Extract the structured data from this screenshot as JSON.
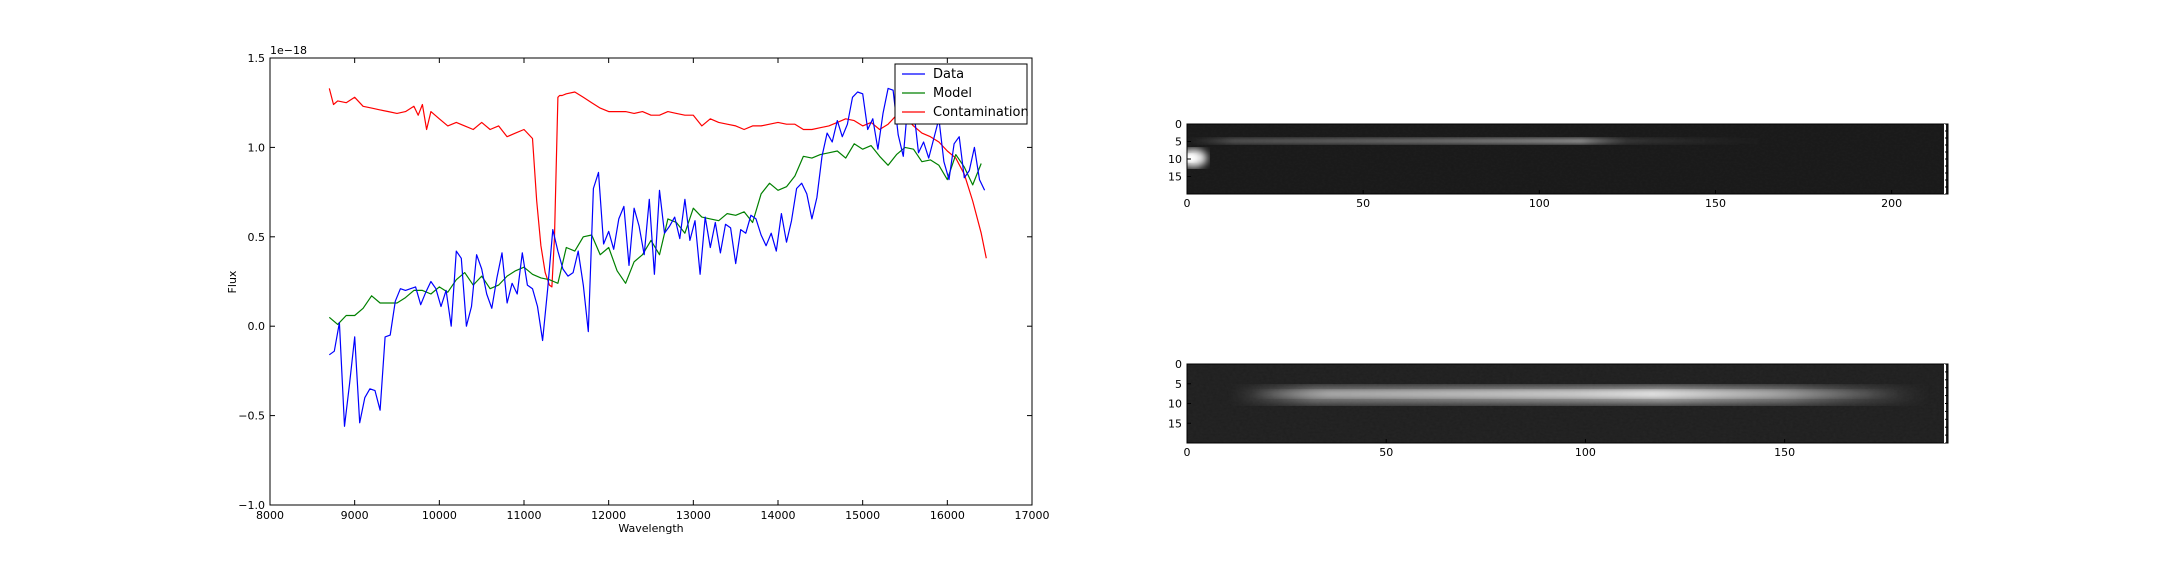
{
  "colors": {
    "data": "#0000ff",
    "model": "#008000",
    "contamination": "#ff0000"
  },
  "chart_data": [
    {
      "type": "line",
      "title": "",
      "xlabel": "Wavelength",
      "ylabel": "Flux",
      "offset_text": "1e−18",
      "xlim": [
        8000,
        17000
      ],
      "ylim": [
        -1.0,
        1.5
      ],
      "x_ticks": [
        8000,
        9000,
        10000,
        11000,
        12000,
        13000,
        14000,
        15000,
        16000,
        17000
      ],
      "y_ticks": [
        -1.0,
        -0.5,
        0.0,
        0.5,
        1.0,
        1.5
      ],
      "x_tick_labels": [
        "8000",
        "9000",
        "10000",
        "11000",
        "12000",
        "13000",
        "14000",
        "15000",
        "16000",
        "17000"
      ],
      "y_tick_labels": [
        "−1.0",
        "−0.5",
        "0.0",
        "0.5",
        "1.0",
        "1.5"
      ],
      "legend_position": "top-right",
      "series": [
        {
          "name": "Data",
          "color": "#0000ff",
          "x": [
            8700,
            8760,
            8820,
            8880,
            8940,
            9000,
            9060,
            9120,
            9180,
            9240,
            9300,
            9360,
            9420,
            9480,
            9540,
            9600,
            9660,
            9720,
            9780,
            9840,
            9900,
            9960,
            10020,
            10080,
            10140,
            10200,
            10260,
            10320,
            10380,
            10440,
            10500,
            10560,
            10620,
            10680,
            10740,
            10800,
            10860,
            10920,
            10980,
            11040,
            11100,
            11160,
            11220,
            11280,
            11340,
            11400,
            11460,
            11520,
            11580,
            11640,
            11700,
            11760,
            11820,
            11880,
            11940,
            12000,
            12060,
            12120,
            12180,
            12240,
            12300,
            12360,
            12420,
            12480,
            12540,
            12600,
            12660,
            12720,
            12780,
            12840,
            12900,
            12960,
            13020,
            13080,
            13140,
            13200,
            13260,
            13320,
            13380,
            13440,
            13500,
            13560,
            13620,
            13680,
            13740,
            13800,
            13860,
            13920,
            13980,
            14040,
            14100,
            14160,
            14220,
            14280,
            14340,
            14400,
            14460,
            14520,
            14580,
            14640,
            14700,
            14760,
            14820,
            14880,
            14940,
            15000,
            15060,
            15120,
            15180,
            15240,
            15300,
            15360,
            15420,
            15480,
            15540,
            15600,
            15660,
            15720,
            15780,
            15840,
            15900,
            15960,
            16020,
            16080,
            16140,
            16200,
            16260,
            16320,
            16380,
            16440
          ],
          "y": [
            -0.16,
            -0.14,
            0.02,
            -0.56,
            -0.32,
            -0.06,
            -0.54,
            -0.4,
            -0.35,
            -0.36,
            -0.47,
            -0.06,
            -0.05,
            0.14,
            0.21,
            0.2,
            0.21,
            0.22,
            0.12,
            0.19,
            0.25,
            0.21,
            0.11,
            0.2,
            0.0,
            0.42,
            0.38,
            0.0,
            0.11,
            0.4,
            0.32,
            0.18,
            0.1,
            0.27,
            0.41,
            0.13,
            0.24,
            0.18,
            0.41,
            0.23,
            0.21,
            0.11,
            -0.08,
            0.21,
            0.54,
            0.42,
            0.32,
            0.28,
            0.3,
            0.42,
            0.23,
            -0.03,
            0.77,
            0.86,
            0.46,
            0.53,
            0.43,
            0.6,
            0.67,
            0.34,
            0.66,
            0.56,
            0.4,
            0.71,
            0.29,
            0.76,
            0.52,
            0.56,
            0.61,
            0.49,
            0.71,
            0.48,
            0.59,
            0.29,
            0.61,
            0.44,
            0.58,
            0.41,
            0.57,
            0.55,
            0.35,
            0.54,
            0.52,
            0.62,
            0.6,
            0.51,
            0.45,
            0.52,
            0.42,
            0.63,
            0.47,
            0.59,
            0.77,
            0.8,
            0.74,
            0.6,
            0.72,
            0.95,
            1.08,
            1.03,
            1.15,
            1.06,
            1.13,
            1.28,
            1.31,
            1.3,
            1.1,
            1.16,
            0.99,
            1.19,
            1.33,
            1.32,
            1.07,
            0.95,
            1.28,
            1.22,
            0.97,
            1.03,
            0.94,
            1.05,
            1.16,
            0.92,
            0.82,
            1.02,
            1.06,
            0.83,
            0.87,
            1.0,
            0.82,
            0.76
          ],
          "x2": [
            15420,
            15480,
            15540,
            15600,
            15660,
            15720,
            15780,
            15840,
            15900,
            15960,
            16020,
            16080,
            16140,
            16200,
            16260,
            16320,
            16380,
            16440
          ]
        },
        {
          "name": "Model",
          "color": "#008000",
          "x": [
            8700,
            8800,
            8900,
            9000,
            9100,
            9200,
            9300,
            9400,
            9500,
            9600,
            9700,
            9800,
            9900,
            10000,
            10100,
            10200,
            10300,
            10400,
            10500,
            10600,
            10700,
            10800,
            10900,
            11000,
            11100,
            11200,
            11300,
            11350,
            11400,
            11500,
            11600,
            11700,
            11800,
            11900,
            12000,
            12100,
            12200,
            12300,
            12400,
            12500,
            12600,
            12700,
            12800,
            12900,
            13000,
            13100,
            13200,
            13300,
            13400,
            13500,
            13600,
            13700,
            13800,
            13900,
            14000,
            14100,
            14200,
            14300,
            14400,
            14500,
            14600,
            14700,
            14800,
            14900,
            15000,
            15100,
            15200,
            15300,
            15400,
            15500,
            15600,
            15700,
            15800,
            15900,
            16000,
            16100,
            16200,
            16300,
            16400
          ],
          "y": [
            0.05,
            0.01,
            0.06,
            0.06,
            0.1,
            0.17,
            0.13,
            0.13,
            0.13,
            0.16,
            0.2,
            0.2,
            0.18,
            0.22,
            0.19,
            0.26,
            0.3,
            0.23,
            0.28,
            0.21,
            0.23,
            0.28,
            0.31,
            0.33,
            0.29,
            0.27,
            0.26,
            0.25,
            0.24,
            0.44,
            0.42,
            0.5,
            0.51,
            0.4,
            0.44,
            0.31,
            0.24,
            0.36,
            0.4,
            0.48,
            0.4,
            0.6,
            0.58,
            0.52,
            0.66,
            0.61,
            0.6,
            0.59,
            0.63,
            0.62,
            0.64,
            0.58,
            0.74,
            0.8,
            0.76,
            0.78,
            0.84,
            0.95,
            0.94,
            0.96,
            0.97,
            0.98,
            0.94,
            1.02,
            0.99,
            1.01,
            0.95,
            0.9,
            0.96,
            1.0,
            0.99,
            0.92,
            0.93,
            0.9,
            0.82,
            0.96,
            0.89,
            0.79,
            0.91
          ]
        },
        {
          "name": "Contamination",
          "color": "#ff0000",
          "x": [
            8700,
            8750,
            8800,
            8900,
            9000,
            9100,
            9200,
            9300,
            9400,
            9500,
            9600,
            9700,
            9750,
            9800,
            9850,
            9900,
            10000,
            10100,
            10200,
            10300,
            10400,
            10500,
            10600,
            10700,
            10800,
            10900,
            11000,
            11100,
            11150,
            11200,
            11250,
            11300,
            11330,
            11360,
            11400,
            11420,
            11450,
            11500,
            11600,
            11700,
            11800,
            11900,
            12000,
            12100,
            12200,
            12300,
            12400,
            12500,
            12600,
            12700,
            12800,
            12900,
            13000,
            13100,
            13200,
            13300,
            13400,
            13500,
            13600,
            13700,
            13800,
            13900,
            14000,
            14100,
            14200,
            14300,
            14400,
            14500,
            14600,
            14700,
            14800,
            14900,
            15000,
            15100,
            15200,
            15300,
            15400,
            15500,
            15600,
            15700,
            15800,
            15900,
            16000,
            16100,
            16200,
            16300,
            16400,
            16460
          ],
          "y": [
            1.33,
            1.24,
            1.26,
            1.25,
            1.28,
            1.23,
            1.22,
            1.21,
            1.2,
            1.19,
            1.2,
            1.23,
            1.18,
            1.24,
            1.1,
            1.2,
            1.16,
            1.12,
            1.14,
            1.12,
            1.1,
            1.14,
            1.1,
            1.12,
            1.06,
            1.08,
            1.1,
            1.05,
            0.7,
            0.45,
            0.3,
            0.23,
            0.22,
            0.5,
            1.28,
            1.29,
            1.29,
            1.3,
            1.31,
            1.28,
            1.25,
            1.22,
            1.2,
            1.2,
            1.2,
            1.19,
            1.2,
            1.18,
            1.18,
            1.2,
            1.19,
            1.18,
            1.18,
            1.12,
            1.16,
            1.14,
            1.13,
            1.12,
            1.1,
            1.12,
            1.12,
            1.13,
            1.14,
            1.13,
            1.13,
            1.1,
            1.1,
            1.11,
            1.12,
            1.14,
            1.16,
            1.15,
            1.12,
            1.14,
            1.1,
            1.13,
            1.18,
            1.17,
            1.12,
            1.08,
            1.06,
            1.03,
            0.98,
            0.94,
            0.85,
            0.7,
            0.52,
            0.38
          ]
        }
      ]
    },
    {
      "type": "heatmap",
      "title": "",
      "x_ticks": [
        0,
        50,
        100,
        150,
        200
      ],
      "x_tick_labels": [
        "0",
        "50",
        "100",
        "150",
        "200"
      ],
      "y_ticks": [
        0,
        5,
        10,
        15
      ],
      "y_tick_labels": [
        "0",
        "5",
        "10",
        "15"
      ],
      "xlim": [
        0,
        216
      ],
      "ylim": [
        0,
        20
      ]
    },
    {
      "type": "heatmap",
      "title": "",
      "x_ticks": [
        0,
        50,
        100,
        150
      ],
      "x_tick_labels": [
        "0",
        "50",
        "100",
        "150"
      ],
      "y_ticks": [
        0,
        5,
        10,
        15
      ],
      "y_tick_labels": [
        "0",
        "5",
        "10",
        "15"
      ],
      "xlim": [
        0,
        191
      ],
      "ylim": [
        0,
        20
      ]
    }
  ]
}
